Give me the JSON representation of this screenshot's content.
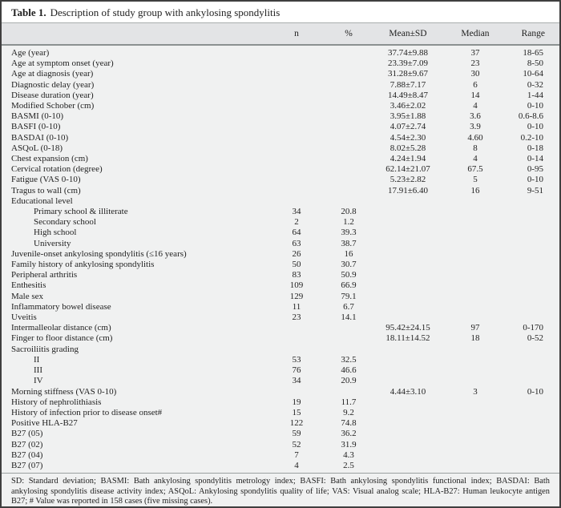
{
  "colors": {
    "outer_border": "#3f3f3f",
    "header_band_bg": "#e3e4e6",
    "body_bg": "#f0f1f1",
    "title_bg": "#ffffff",
    "rule": "#8b9191",
    "text": "#1f1f1f"
  },
  "table": {
    "title_label": "Table 1.",
    "title_text": "Description of study group with ankylosing spondylitis",
    "columns": {
      "n": "n",
      "pct": "%",
      "mean_sd": "Mean±SD",
      "median": "Median",
      "range": "Range"
    },
    "rows": [
      {
        "label": "Age (year)",
        "indent": false,
        "n": "",
        "pct": "",
        "mean_sd": "37.74±9.88",
        "median": "37",
        "range": "18-65"
      },
      {
        "label": "Age at symptom onset (year)",
        "indent": false,
        "n": "",
        "pct": "",
        "mean_sd": "23.39±7.09",
        "median": "23",
        "range": "8-50"
      },
      {
        "label": "Age at diagnosis (year)",
        "indent": false,
        "n": "",
        "pct": "",
        "mean_sd": "31.28±9.67",
        "median": "30",
        "range": "10-64"
      },
      {
        "label": "Diagnostic delay (year)",
        "indent": false,
        "n": "",
        "pct": "",
        "mean_sd": "7.88±7.17",
        "median": "6",
        "range": "0-32"
      },
      {
        "label": "Disease duration (year)",
        "indent": false,
        "n": "",
        "pct": "",
        "mean_sd": "14.49±8.47",
        "median": "14",
        "range": "1-44"
      },
      {
        "label": "Modified Schober (cm)",
        "indent": false,
        "n": "",
        "pct": "",
        "mean_sd": "3.46±2.02",
        "median": "4",
        "range": "0-10"
      },
      {
        "label": "BASMI (0-10)",
        "indent": false,
        "n": "",
        "pct": "",
        "mean_sd": "3.95±1.88",
        "median": "3.6",
        "range": "0.6-8.6"
      },
      {
        "label": "BASFI (0-10)",
        "indent": false,
        "n": "",
        "pct": "",
        "mean_sd": "4.07±2.74",
        "median": "3.9",
        "range": "0-10"
      },
      {
        "label": "BASDAI (0-10)",
        "indent": false,
        "n": "",
        "pct": "",
        "mean_sd": "4.54±2.30",
        "median": "4.60",
        "range": "0.2-10"
      },
      {
        "label": "ASQoL (0-18)",
        "indent": false,
        "n": "",
        "pct": "",
        "mean_sd": "8.02±5.28",
        "median": "8",
        "range": "0-18"
      },
      {
        "label": "Chest expansion (cm)",
        "indent": false,
        "n": "",
        "pct": "",
        "mean_sd": "4.24±1.94",
        "median": "4",
        "range": "0-14"
      },
      {
        "label": "Cervical rotation (degree)",
        "indent": false,
        "n": "",
        "pct": "",
        "mean_sd": "62.14±21.07",
        "median": "67.5",
        "range": "0-95"
      },
      {
        "label": "Fatigue (VAS 0-10)",
        "indent": false,
        "n": "",
        "pct": "",
        "mean_sd": "5.23±2.82",
        "median": "5",
        "range": "0-10"
      },
      {
        "label": "Tragus to wall (cm)",
        "indent": false,
        "n": "",
        "pct": "",
        "mean_sd": "17.91±6.40",
        "median": "16",
        "range": "9-51"
      },
      {
        "label": "Educational level",
        "indent": false,
        "n": "",
        "pct": "",
        "mean_sd": "",
        "median": "",
        "range": ""
      },
      {
        "label": "Primary school & illiterate",
        "indent": true,
        "n": "34",
        "pct": "20.8",
        "mean_sd": "",
        "median": "",
        "range": ""
      },
      {
        "label": "Secondary school",
        "indent": true,
        "n": "2",
        "pct": "1.2",
        "mean_sd": "",
        "median": "",
        "range": ""
      },
      {
        "label": "High school",
        "indent": true,
        "n": "64",
        "pct": "39.3",
        "mean_sd": "",
        "median": "",
        "range": ""
      },
      {
        "label": "University",
        "indent": true,
        "n": "63",
        "pct": "38.7",
        "mean_sd": "",
        "median": "",
        "range": ""
      },
      {
        "label": "Juvenile-onset ankylosing spondylitis (≤16 years)",
        "indent": false,
        "n": "26",
        "pct": "16",
        "mean_sd": "",
        "median": "",
        "range": ""
      },
      {
        "label": "Family history of ankylosing spondylitis",
        "indent": false,
        "n": "50",
        "pct": "30.7",
        "mean_sd": "",
        "median": "",
        "range": ""
      },
      {
        "label": "Peripheral arthritis",
        "indent": false,
        "n": "83",
        "pct": "50.9",
        "mean_sd": "",
        "median": "",
        "range": ""
      },
      {
        "label": "Enthesitis",
        "indent": false,
        "n": "109",
        "pct": "66.9",
        "mean_sd": "",
        "median": "",
        "range": ""
      },
      {
        "label": "Male sex",
        "indent": false,
        "n": "129",
        "pct": "79.1",
        "mean_sd": "",
        "median": "",
        "range": ""
      },
      {
        "label": "Inflammatory bowel disease",
        "indent": false,
        "n": "11",
        "pct": "6.7",
        "mean_sd": "",
        "median": "",
        "range": ""
      },
      {
        "label": "Uveitis",
        "indent": false,
        "n": "23",
        "pct": "14.1",
        "mean_sd": "",
        "median": "",
        "range": ""
      },
      {
        "label": "Intermalleolar distance (cm)",
        "indent": false,
        "n": "",
        "pct": "",
        "mean_sd": "95.42±24.15",
        "median": "97",
        "range": "0-170"
      },
      {
        "label": "Finger to floor distance (cm)",
        "indent": false,
        "n": "",
        "pct": "",
        "mean_sd": "18.11±14.52",
        "median": "18",
        "range": "0-52"
      },
      {
        "label": "Sacroiliitis grading",
        "indent": false,
        "n": "",
        "pct": "",
        "mean_sd": "",
        "median": "",
        "range": ""
      },
      {
        "label": "II",
        "indent": true,
        "n": "53",
        "pct": "32.5",
        "mean_sd": "",
        "median": "",
        "range": ""
      },
      {
        "label": "III",
        "indent": true,
        "n": "76",
        "pct": "46.6",
        "mean_sd": "",
        "median": "",
        "range": ""
      },
      {
        "label": "IV",
        "indent": true,
        "n": "34",
        "pct": "20.9",
        "mean_sd": "",
        "median": "",
        "range": ""
      },
      {
        "label": "Morning stiffness (VAS 0-10)",
        "indent": false,
        "n": "",
        "pct": "",
        "mean_sd": "4.44±3.10",
        "median": "3",
        "range": "0-10"
      },
      {
        "label": "History of nephrolithiasis",
        "indent": false,
        "n": "19",
        "pct": "11.7",
        "mean_sd": "",
        "median": "",
        "range": ""
      },
      {
        "label": "History of infection prior to disease onset#",
        "indent": false,
        "n": "15",
        "pct": "9.2",
        "mean_sd": "",
        "median": "",
        "range": ""
      },
      {
        "label": "Positive HLA-B27",
        "indent": false,
        "n": "122",
        "pct": "74.8",
        "mean_sd": "",
        "median": "",
        "range": ""
      },
      {
        "label": "B27 (05)",
        "indent": false,
        "n": "59",
        "pct": "36.2",
        "mean_sd": "",
        "median": "",
        "range": ""
      },
      {
        "label": "B27 (02)",
        "indent": false,
        "n": "52",
        "pct": "31.9",
        "mean_sd": "",
        "median": "",
        "range": ""
      },
      {
        "label": "B27 (04)",
        "indent": false,
        "n": "7",
        "pct": "4.3",
        "mean_sd": "",
        "median": "",
        "range": ""
      },
      {
        "label": "B27 (07)",
        "indent": false,
        "n": "4",
        "pct": "2.5",
        "mean_sd": "",
        "median": "",
        "range": ""
      }
    ],
    "footnote": "SD: Standard deviation; BASMI: Bath ankylosing spondylitis metrology index; BASFI: Bath ankylosing spondylitis functional index; BASDAI: Bath ankylosing spondylitis disease activity index; ASQoL: Ankylosing spondylitis quality of life; VAS: Visual analog scale; HLA-B27: Human leukocyte antigen B27; # Value was reported in 158 cases (five missing cases)."
  }
}
